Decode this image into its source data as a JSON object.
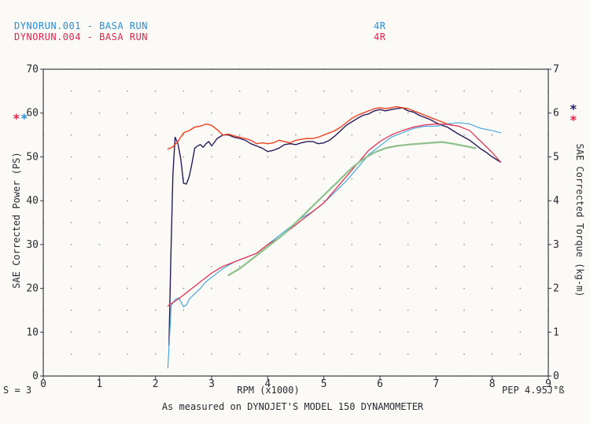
{
  "header": {
    "runs": [
      {
        "name": "DYNORUN.001 - BASA RUN",
        "gear": "4R",
        "color": "#2a8fd8"
      },
      {
        "name": "DYNORUN.004 - BASA RUN",
        "gear": "4R",
        "color": "#e5264a"
      }
    ]
  },
  "footer": {
    "smoothing": "S = 3",
    "env": "PEP 4.95J°ß",
    "caption": "As measured on DYNOJET'S MODEL 150 DYNAMOMETER"
  },
  "legend_markers": {
    "left": [
      {
        "symbol": "*",
        "color": "#e5264a"
      },
      {
        "symbol": "*",
        "color": "#2a8fd8"
      }
    ],
    "right": [
      {
        "symbol": "*",
        "color": "#2a1a5a"
      },
      {
        "symbol": "*",
        "color": "#e5264a"
      }
    ]
  },
  "chart_data": {
    "type": "line",
    "xlabel": "RPM (x1000)",
    "ylabel": "SAE Corrected Power (PS)",
    "y2label": "SAE Corrected Torque (kg-m)",
    "xlim": [
      0,
      9
    ],
    "ylim": [
      0,
      70
    ],
    "y2lim": [
      0,
      7
    ],
    "xticks": [
      0,
      1,
      2,
      3,
      4,
      5,
      6,
      7,
      8,
      9
    ],
    "yticks": [
      0,
      10,
      20,
      30,
      40,
      50,
      60,
      70
    ],
    "y2ticks": [
      0,
      1,
      2,
      3,
      4,
      5,
      6,
      7
    ],
    "grid": "dotted",
    "series": [
      {
        "axis": "right",
        "color": "#2a1a5a",
        "width": 1.4,
        "x": [
          2.24,
          2.27,
          2.31,
          2.35,
          2.4,
          2.45,
          2.5,
          2.55,
          2.6,
          2.65,
          2.7,
          2.75,
          2.8,
          2.85,
          2.9,
          2.95,
          3.0,
          3.1,
          3.2,
          3.3,
          3.4,
          3.5,
          3.6,
          3.7,
          3.8,
          3.9,
          4.0,
          4.1,
          4.2,
          4.3,
          4.4,
          4.5,
          4.6,
          4.7,
          4.8,
          4.9,
          5.0,
          5.1,
          5.2,
          5.3,
          5.4,
          5.5,
          5.6,
          5.7,
          5.8,
          5.9,
          6.0,
          6.1,
          6.2,
          6.3,
          6.4,
          6.5,
          6.6,
          6.7,
          6.8,
          6.9,
          7.0,
          7.1,
          7.2,
          7.3,
          7.4,
          7.5,
          7.6,
          7.7,
          7.8,
          7.9,
          8.0,
          8.1,
          8.15
        ],
        "y": [
          0.7,
          2.5,
          4.6,
          5.45,
          5.3,
          4.95,
          4.4,
          4.38,
          4.55,
          4.85,
          5.2,
          5.25,
          5.28,
          5.22,
          5.3,
          5.35,
          5.25,
          5.42,
          5.5,
          5.5,
          5.45,
          5.42,
          5.38,
          5.3,
          5.25,
          5.2,
          5.12,
          5.15,
          5.2,
          5.28,
          5.3,
          5.28,
          5.32,
          5.35,
          5.35,
          5.3,
          5.32,
          5.38,
          5.48,
          5.6,
          5.72,
          5.8,
          5.88,
          5.95,
          5.98,
          6.05,
          6.08,
          6.05,
          6.08,
          6.1,
          6.12,
          6.05,
          6.02,
          5.95,
          5.9,
          5.85,
          5.78,
          5.72,
          5.68,
          5.6,
          5.52,
          5.45,
          5.38,
          5.28,
          5.18,
          5.1,
          5.0,
          4.92,
          4.88
        ]
      },
      {
        "axis": "right",
        "color": "#f2401e",
        "width": 1.4,
        "x": [
          2.22,
          2.3,
          2.4,
          2.5,
          2.6,
          2.7,
          2.8,
          2.9,
          3.0,
          3.1,
          3.2,
          3.3,
          3.4,
          3.5,
          3.6,
          3.7,
          3.8,
          3.9,
          4.0,
          4.1,
          4.2,
          4.3,
          4.4,
          4.5,
          4.6,
          4.7,
          4.8,
          4.9,
          5.0,
          5.1,
          5.2,
          5.3,
          5.4,
          5.5,
          5.6,
          5.7,
          5.8,
          5.9,
          6.0,
          6.1,
          6.2,
          6.3,
          6.4,
          6.5,
          6.6,
          6.7,
          6.8,
          6.9,
          7.0,
          7.1,
          7.2,
          7.3
        ],
        "y": [
          5.18,
          5.22,
          5.35,
          5.55,
          5.6,
          5.68,
          5.7,
          5.75,
          5.72,
          5.62,
          5.5,
          5.52,
          5.48,
          5.45,
          5.42,
          5.38,
          5.3,
          5.32,
          5.3,
          5.32,
          5.38,
          5.35,
          5.32,
          5.38,
          5.4,
          5.42,
          5.42,
          5.45,
          5.5,
          5.55,
          5.6,
          5.68,
          5.78,
          5.88,
          5.95,
          6.0,
          6.05,
          6.1,
          6.12,
          6.1,
          6.12,
          6.15,
          6.12,
          6.1,
          6.05,
          6.0,
          5.95,
          5.9,
          5.85,
          5.8,
          5.75,
          5.72
        ]
      },
      {
        "axis": "left",
        "color": "#38a0e0",
        "width": 1.1,
        "x": [
          2.22,
          2.28,
          2.35,
          2.42,
          2.5,
          2.55,
          2.6,
          2.7,
          2.8,
          2.9,
          3.0,
          3.2,
          3.4,
          3.6,
          3.8,
          4.0,
          4.2,
          4.4,
          4.6,
          4.8,
          5.0,
          5.2,
          5.4,
          5.6,
          5.8,
          6.0,
          6.2,
          6.4,
          6.6,
          6.8,
          7.0,
          7.2,
          7.4,
          7.6,
          7.8,
          8.0,
          8.15
        ],
        "y": [
          1.8,
          16.0,
          17.5,
          17.8,
          15.8,
          16.2,
          17.5,
          18.8,
          20.0,
          21.5,
          22.5,
          24.5,
          26.0,
          27.0,
          28.0,
          30.0,
          32.0,
          34.0,
          36.0,
          37.5,
          39.5,
          42.0,
          44.5,
          47.5,
          50.5,
          52.5,
          54.5,
          55.5,
          56.5,
          57.0,
          57.0,
          57.5,
          57.8,
          57.5,
          56.5,
          56.0,
          55.5
        ]
      },
      {
        "axis": "left",
        "color": "#e5264a",
        "width": 1.2,
        "x": [
          2.22,
          2.4,
          2.6,
          2.8,
          3.0,
          3.2,
          3.4,
          3.6,
          3.8,
          4.0,
          4.2,
          4.4,
          4.6,
          4.8,
          5.0,
          5.2,
          5.4,
          5.6,
          5.8,
          6.0,
          6.2,
          6.4,
          6.6,
          6.8,
          7.0,
          7.2,
          7.4,
          7.6,
          7.8,
          8.0,
          8.15
        ],
        "y": [
          16.0,
          17.5,
          19.5,
          21.5,
          23.5,
          25.0,
          26.0,
          27.0,
          28.0,
          30.0,
          31.5,
          33.5,
          35.5,
          37.5,
          39.5,
          42.5,
          45.5,
          48.5,
          51.5,
          53.5,
          55.0,
          56.0,
          56.8,
          57.3,
          57.5,
          57.4,
          57.0,
          56.0,
          53.5,
          51.0,
          48.8
        ]
      },
      {
        "axis": "left",
        "color": "#8dc08b",
        "width": 2.2,
        "x": [
          3.3,
          3.5,
          3.7,
          3.9,
          4.1,
          4.3,
          4.5,
          4.7,
          4.9,
          5.1,
          5.3,
          5.5,
          5.7,
          5.9,
          6.1,
          6.3,
          6.5,
          6.7,
          6.9,
          7.1,
          7.3,
          7.5,
          7.7
        ],
        "y": [
          23.0,
          24.5,
          26.5,
          28.5,
          30.5,
          32.5,
          35.0,
          37.5,
          40.0,
          42.5,
          45.0,
          47.5,
          49.5,
          51.0,
          52.0,
          52.5,
          52.8,
          53.0,
          53.2,
          53.4,
          53.0,
          52.5,
          52.0
        ]
      }
    ]
  }
}
